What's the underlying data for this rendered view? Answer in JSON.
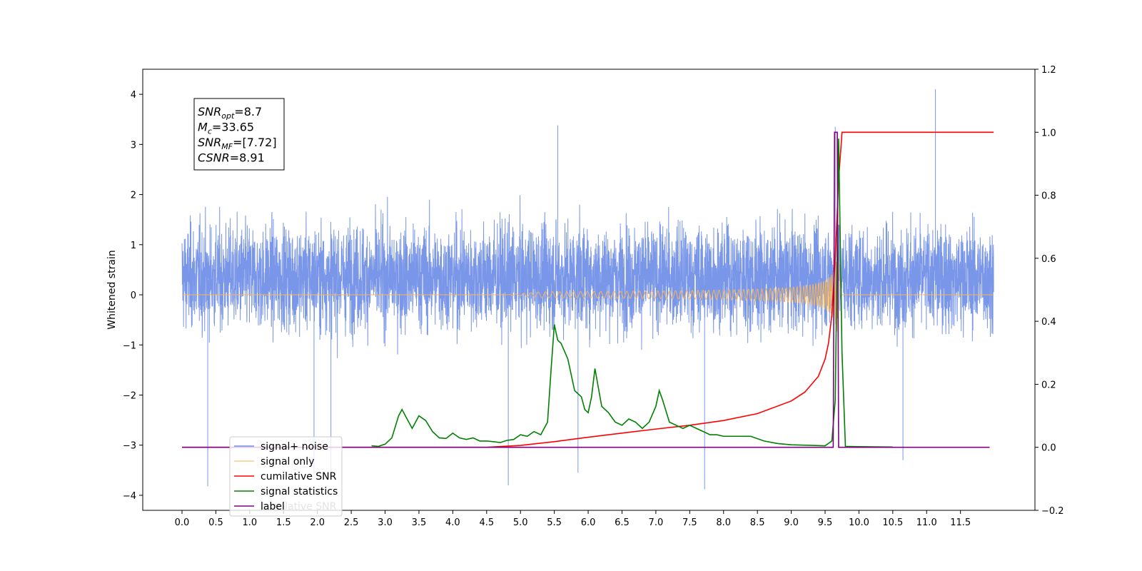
{
  "chart_data": {
    "type": "line",
    "ylabel": "Whitened strain",
    "x_ticks": [
      "0.0",
      "0.5",
      "1.0",
      "1.5",
      "2.0",
      "2.5",
      "3.0",
      "3.5",
      "4.0",
      "4.5",
      "5.0",
      "5.5",
      "6.0",
      "6.5",
      "7.0",
      "7.5",
      "8.0",
      "8.5",
      "9.0",
      "9.5",
      "10.0",
      "10.5",
      "11.0",
      "11.5"
    ],
    "x_tick_values": [
      0.0,
      0.5,
      1.0,
      1.5,
      2.0,
      2.5,
      3.0,
      3.5,
      4.0,
      4.5,
      5.0,
      5.5,
      6.0,
      6.5,
      7.0,
      7.5,
      8.0,
      8.5,
      9.0,
      9.5,
      10.0,
      10.5,
      11.0,
      11.5
    ],
    "xlim": [
      -0.58,
      12.6
    ],
    "ylim_left": [
      -4.3,
      4.5
    ],
    "y_ticks_left": [
      "4",
      "3",
      "2",
      "1",
      "0",
      "−1",
      "−2",
      "−3",
      "−4"
    ],
    "y_tick_values_left": [
      4,
      3,
      2,
      1,
      0,
      -1,
      -2,
      -3,
      -4
    ],
    "ylim_right": [
      -0.2,
      1.2
    ],
    "y_ticks_right": [
      "1.2",
      "1.0",
      "0.8",
      "0.6",
      "0.4",
      "0.2",
      "0.0",
      "−0.2"
    ],
    "y_tick_values_right": [
      1.2,
      1.0,
      0.8,
      0.6,
      0.4,
      0.2,
      0.0,
      -0.2
    ],
    "colors": {
      "signal_noise": "#6a8be6",
      "signal_only": "#f5b55a",
      "cumulative_snr": "#ff0000",
      "signal_statistics": "#008000",
      "label": "#800080"
    },
    "series": [
      {
        "name": "signal+ noise",
        "axis": "left",
        "description_values": {
          "x_start": 0.0,
          "x_end": 11.99,
          "typical_range": [
            -2.5,
            2.5
          ],
          "max": 4.1,
          "min": -3.85
        }
      },
      {
        "name": "signal only",
        "axis": "left",
        "chirp": {
          "x_start": 4.8,
          "x_peak": 9.68,
          "peak_amplitude": 0.6
        }
      },
      {
        "name": "cumilative SNR",
        "axis": "right",
        "x": [
          0.0,
          4.5,
          5.0,
          5.5,
          6.0,
          6.5,
          7.0,
          7.5,
          8.0,
          8.5,
          9.0,
          9.2,
          9.4,
          9.5,
          9.55,
          9.6,
          9.65,
          9.7,
          9.75,
          11.99
        ],
        "values": [
          0.0,
          0.0,
          0.006,
          0.018,
          0.032,
          0.045,
          0.058,
          0.07,
          0.085,
          0.107,
          0.147,
          0.175,
          0.225,
          0.28,
          0.33,
          0.42,
          0.6,
          0.85,
          1.0,
          1.0
        ]
      },
      {
        "name": "signal statistics",
        "axis": "right",
        "x": [
          2.8,
          2.9,
          3.0,
          3.1,
          3.2,
          3.25,
          3.3,
          3.4,
          3.5,
          3.6,
          3.7,
          3.8,
          3.9,
          4.0,
          4.1,
          4.2,
          4.3,
          4.4,
          4.5,
          4.6,
          4.7,
          4.8,
          4.9,
          5.0,
          5.1,
          5.2,
          5.3,
          5.4,
          5.45,
          5.5,
          5.55,
          5.6,
          5.7,
          5.8,
          5.9,
          5.95,
          6.0,
          6.05,
          6.1,
          6.15,
          6.2,
          6.3,
          6.4,
          6.5,
          6.6,
          6.7,
          6.8,
          6.9,
          7.0,
          7.05,
          7.1,
          7.2,
          7.3,
          7.4,
          7.5,
          7.6,
          7.7,
          7.8,
          7.9,
          8.0,
          8.2,
          8.4,
          8.6,
          8.8,
          9.0,
          9.5,
          9.6,
          9.65,
          9.7,
          9.75,
          9.8,
          10.0,
          10.5
        ],
        "values": [
          0.005,
          0.003,
          0.01,
          0.03,
          0.1,
          0.12,
          0.1,
          0.06,
          0.1,
          0.085,
          0.05,
          0.03,
          0.028,
          0.045,
          0.03,
          0.025,
          0.03,
          0.02,
          0.02,
          0.018,
          0.015,
          0.022,
          0.025,
          0.04,
          0.035,
          0.05,
          0.04,
          0.08,
          0.24,
          0.39,
          0.34,
          0.33,
          0.28,
          0.18,
          0.16,
          0.12,
          0.11,
          0.16,
          0.25,
          0.19,
          0.13,
          0.11,
          0.08,
          0.07,
          0.09,
          0.08,
          0.06,
          0.08,
          0.13,
          0.18,
          0.15,
          0.08,
          0.07,
          0.06,
          0.07,
          0.06,
          0.05,
          0.04,
          0.04,
          0.035,
          0.035,
          0.035,
          0.02,
          0.012,
          0.008,
          0.005,
          0.02,
          0.15,
          0.98,
          0.3,
          0.003,
          0.002,
          0.001
        ]
      },
      {
        "name": "label",
        "axis": "right",
        "x": [
          0.0,
          9.62,
          9.64,
          9.68,
          9.7,
          11.93
        ],
        "values": [
          0.0,
          0.0,
          1.0,
          1.0,
          0.0,
          0.0
        ]
      }
    ],
    "legend": {
      "placement": "lower-left",
      "entries": [
        "signal+ noise",
        "signal only",
        "cumilative SNR",
        "signal statistics",
        "label"
      ],
      "hidden_text": "cumilative SNR"
    },
    "annotation": {
      "lines": [
        {
          "main": "SNR",
          "sub": "opt",
          "rest": "=8.7"
        },
        {
          "main": "M",
          "sub": "c",
          "rest": "=33.65"
        },
        {
          "main": "SNR",
          "sub": "MF",
          "rest": "=[7.72]"
        },
        {
          "main": "CSNR",
          "sub": "",
          "rest": "=8.91"
        }
      ]
    }
  }
}
